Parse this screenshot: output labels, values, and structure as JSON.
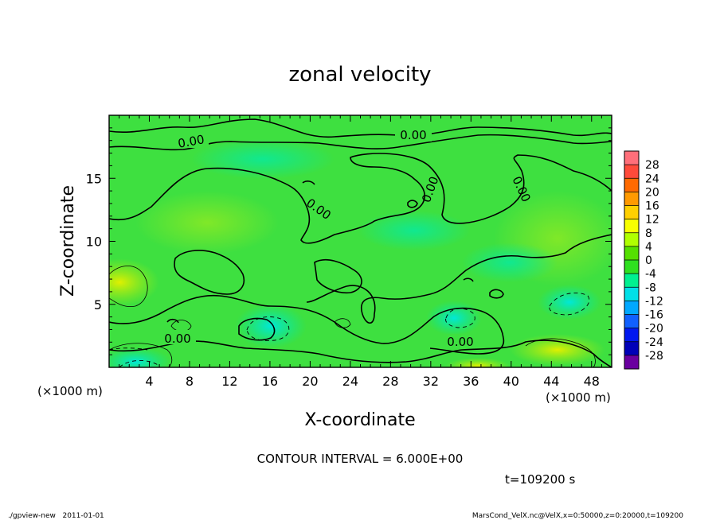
{
  "chart_data": {
    "type": "heatmap",
    "title": "zonal velocity",
    "xlabel": "X-coordinate",
    "ylabel": "Z-coordinate",
    "x_unit_label": "(×1000 m)",
    "y_unit_label": "(×1000 m)",
    "x_ticks": [
      4,
      8,
      12,
      16,
      20,
      24,
      28,
      32,
      36,
      40,
      44,
      48
    ],
    "y_ticks": [
      5,
      10,
      15
    ],
    "xlim": [
      0,
      50
    ],
    "ylim": [
      0,
      20
    ],
    "colorbar_levels": [
      28,
      24,
      20,
      16,
      12,
      8,
      4,
      0,
      -4,
      -8,
      -12,
      -16,
      -20,
      -24,
      -28
    ],
    "colorbar_colors": [
      "#ff6f7a",
      "#ff4a3a",
      "#ff6a00",
      "#ff9a00",
      "#ffd000",
      "#f8ff00",
      "#b0ff00",
      "#55e000",
      "#2fe020",
      "#00f090",
      "#00e0e8",
      "#00a8ff",
      "#1060ff",
      "#0018f0",
      "#0000b8",
      "#6a00a0"
    ],
    "contour_label": "0.00",
    "contour_interval_text": "CONTOUR INTERVAL = 6.000E+00",
    "time_text": "t=109200 s",
    "footer_left": "./gpview-new   2011-01-01",
    "footer_right": "MarsCond_VelX.nc@VelX,x=0:50000,z=0:20000,t=109200"
  }
}
